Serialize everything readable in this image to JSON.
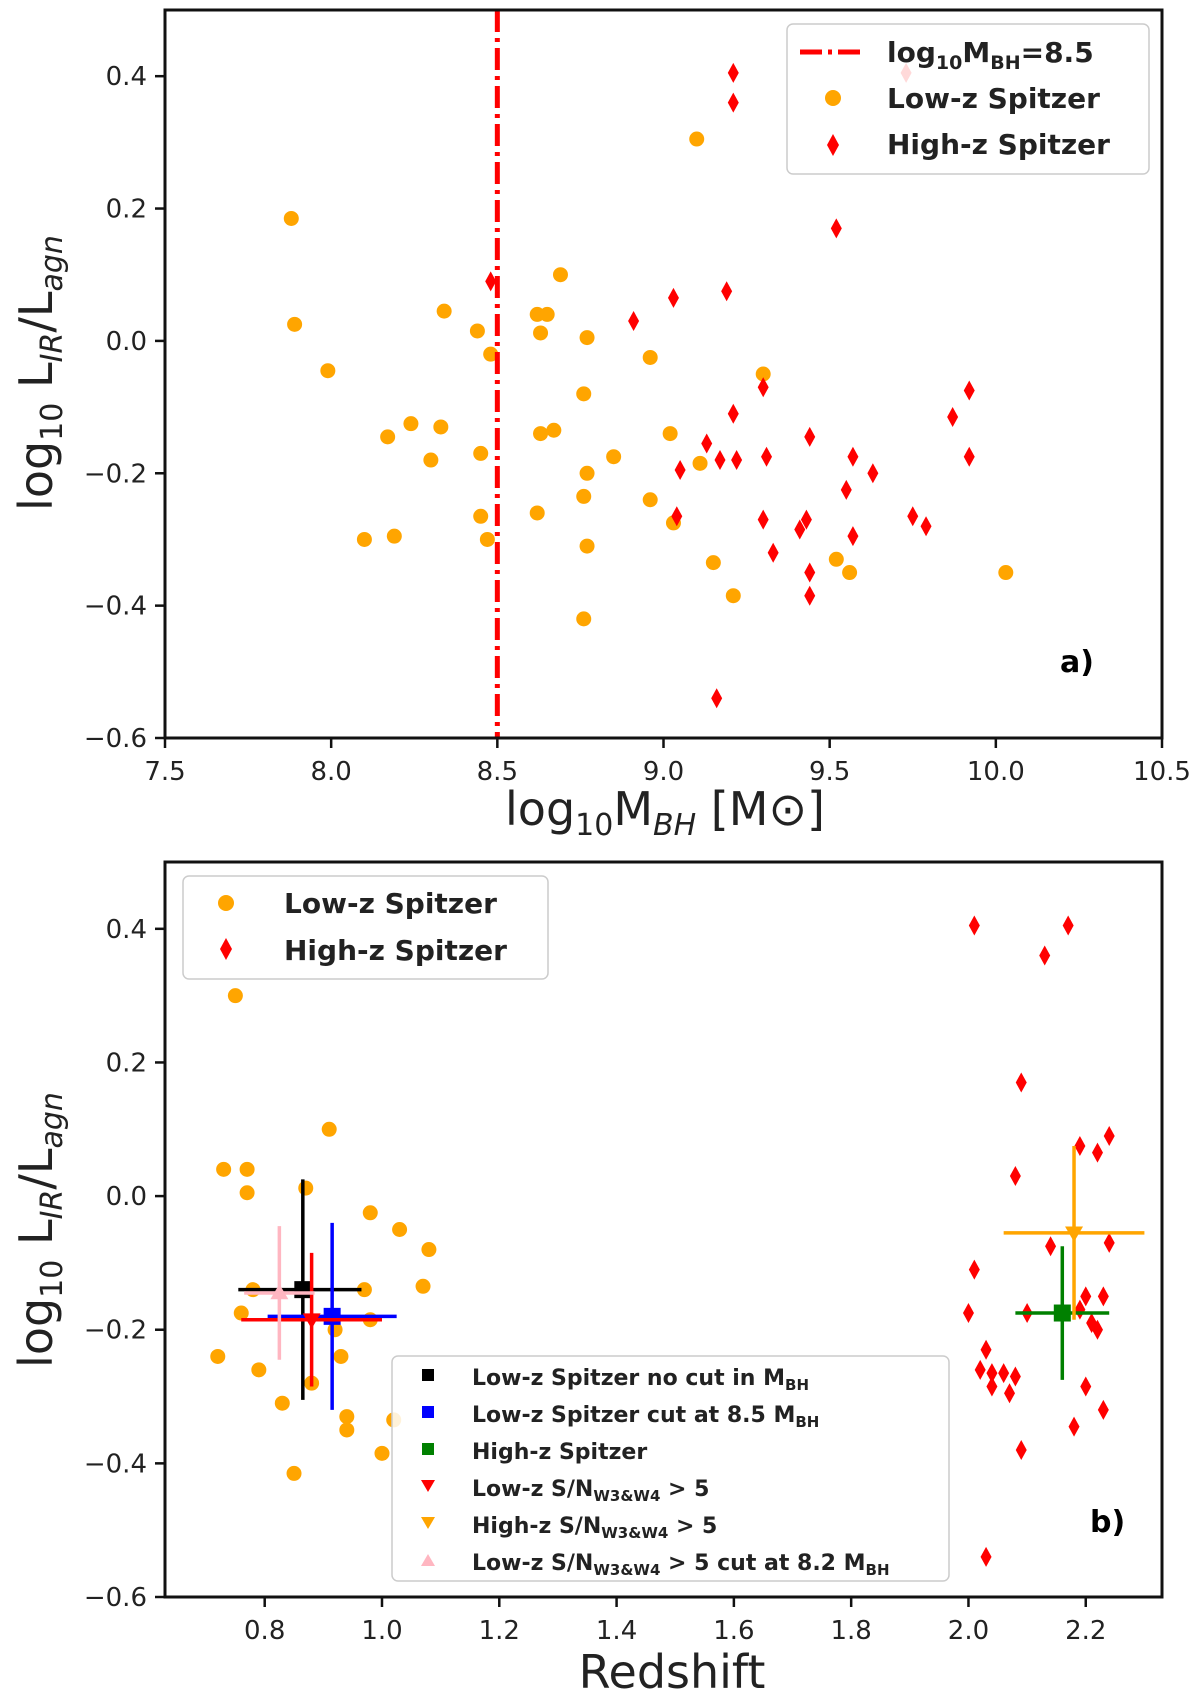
{
  "chart_data": [
    {
      "type": "scatter",
      "panel_label": "a)",
      "ylabel_main": "log",
      "ylabel_sub": "10",
      "ylabel_L1": "L",
      "ylabel_sub_ir": "IR",
      "ylabel_mid": "/L",
      "ylabel_sub_agn": "agn",
      "xlabel_main": "log",
      "xlabel_sub": "10",
      "xlabel_M": "M",
      "xlabel_sub_bh": "BH",
      "xlabel_unit": " [M",
      "xlabel_unit_sym": "⊙",
      "xlabel_unit_end": "]",
      "xlim": [
        7.5,
        10.5
      ],
      "ylim": [
        -0.6,
        0.5
      ],
      "xticks": [
        7.5,
        8.0,
        8.5,
        9.0,
        9.5,
        10.0,
        10.5
      ],
      "xtick_labels": [
        "7.5",
        "8.0",
        "8.5",
        "9.0",
        "9.5",
        "10.0",
        "10.5"
      ],
      "yticks": [
        -0.6,
        -0.4,
        -0.2,
        0.0,
        0.2,
        0.4
      ],
      "ytick_labels": [
        "−0.6",
        "−0.4",
        "−0.2",
        "0.0",
        "0.2",
        "0.4"
      ],
      "grid": false,
      "legend_position": "top-right",
      "vline": {
        "x": 8.5,
        "label_main": "log",
        "label_sub": "10",
        "label_M": "M",
        "label_sub_bh": "BH",
        "label_end": "=8.5",
        "color": "#ff0000",
        "style": "dashdot"
      },
      "series": [
        {
          "name": "Low-z Spitzer",
          "marker": "circle",
          "color": "#ffa500",
          "points": [
            [
              7.88,
              0.185
            ],
            [
              7.89,
              0.025
            ],
            [
              7.99,
              -0.045
            ],
            [
              8.1,
              -0.3
            ],
            [
              8.17,
              -0.145
            ],
            [
              8.19,
              -0.295
            ],
            [
              8.24,
              -0.125
            ],
            [
              8.3,
              -0.18
            ],
            [
              8.33,
              -0.13
            ],
            [
              8.34,
              0.045
            ],
            [
              8.44,
              0.015
            ],
            [
              8.45,
              -0.17
            ],
            [
              8.45,
              -0.265
            ],
            [
              8.47,
              -0.3
            ],
            [
              8.48,
              -0.02
            ],
            [
              8.62,
              0.04
            ],
            [
              8.62,
              -0.26
            ],
            [
              8.63,
              -0.14
            ],
            [
              8.63,
              0.012
            ],
            [
              8.65,
              0.04
            ],
            [
              8.67,
              -0.135
            ],
            [
              8.69,
              0.1
            ],
            [
              8.76,
              -0.08
            ],
            [
              8.76,
              -0.235
            ],
            [
              8.76,
              -0.42
            ],
            [
              8.77,
              0.005
            ],
            [
              8.77,
              -0.2
            ],
            [
              8.77,
              -0.31
            ],
            [
              8.85,
              -0.175
            ],
            [
              8.96,
              -0.025
            ],
            [
              8.96,
              -0.24
            ],
            [
              9.02,
              -0.14
            ],
            [
              9.03,
              -0.275
            ],
            [
              9.1,
              0.305
            ],
            [
              9.11,
              -0.185
            ],
            [
              9.15,
              -0.335
            ],
            [
              9.21,
              -0.385
            ],
            [
              9.3,
              -0.05
            ],
            [
              9.52,
              -0.33
            ],
            [
              9.56,
              -0.35
            ],
            [
              10.03,
              -0.35
            ]
          ]
        },
        {
          "name": "High-z Spitzer",
          "marker": "diamond",
          "color": "#ff0000",
          "points": [
            [
              8.48,
              0.09
            ],
            [
              8.91,
              0.03
            ],
            [
              9.03,
              0.065
            ],
            [
              9.04,
              -0.265
            ],
            [
              9.05,
              -0.195
            ],
            [
              9.13,
              -0.155
            ],
            [
              9.17,
              -0.18
            ],
            [
              9.19,
              0.075
            ],
            [
              9.21,
              0.405
            ],
            [
              9.21,
              0.36
            ],
            [
              9.21,
              -0.11
            ],
            [
              9.22,
              -0.18
            ],
            [
              9.16,
              -0.54
            ],
            [
              9.3,
              -0.07
            ],
            [
              9.3,
              -0.27
            ],
            [
              9.31,
              -0.175
            ],
            [
              9.33,
              -0.32
            ],
            [
              9.41,
              -0.285
            ],
            [
              9.43,
              -0.27
            ],
            [
              9.44,
              -0.145
            ],
            [
              9.44,
              -0.35
            ],
            [
              9.44,
              -0.385
            ],
            [
              9.52,
              0.17
            ],
            [
              9.55,
              -0.225
            ],
            [
              9.57,
              -0.175
            ],
            [
              9.57,
              -0.295
            ],
            [
              9.63,
              -0.2
            ],
            [
              9.75,
              -0.265
            ],
            [
              9.79,
              -0.28
            ],
            [
              9.87,
              -0.115
            ],
            [
              9.92,
              -0.075
            ],
            [
              9.92,
              -0.175
            ],
            [
              9.73,
              0.405
            ]
          ]
        }
      ],
      "legend": [
        {
          "kind": "vline",
          "main": "log",
          "sub": "10",
          "M": "M",
          "sub_bh": "BH",
          "end": "=8.5"
        },
        {
          "kind": "circle",
          "label": "Low-z Spitzer"
        },
        {
          "kind": "diamond",
          "label": "High-z Spitzer"
        }
      ]
    },
    {
      "type": "scatter",
      "panel_label": "b)",
      "ylabel_main": "log",
      "ylabel_sub": "10",
      "ylabel_L1": "L",
      "ylabel_sub_ir": "IR",
      "ylabel_mid": "/L",
      "ylabel_sub_agn": "agn",
      "xlabel": "Redshift",
      "xlim": [
        0.63,
        2.33
      ],
      "ylim": [
        -0.6,
        0.5
      ],
      "xticks": [
        0.8,
        1.0,
        1.2,
        1.4,
        1.6,
        1.8,
        2.0,
        2.2
      ],
      "xtick_labels": [
        "0.8",
        "1.0",
        "1.2",
        "1.4",
        "1.6",
        "1.8",
        "2.0",
        "2.2"
      ],
      "yticks": [
        -0.6,
        -0.4,
        -0.2,
        0.0,
        0.2,
        0.4
      ],
      "ytick_labels": [
        "−0.6",
        "−0.4",
        "−0.2",
        "0.0",
        "0.2",
        "0.4"
      ],
      "grid": false,
      "legend_position": "top-left",
      "series": [
        {
          "name": "Low-z Spitzer",
          "marker": "circle",
          "color": "#ffa500",
          "points": [
            [
              0.72,
              -0.24
            ],
            [
              0.73,
              0.04
            ],
            [
              0.75,
              0.3
            ],
            [
              0.76,
              -0.175
            ],
            [
              0.77,
              0.005
            ],
            [
              0.77,
              0.04
            ],
            [
              0.78,
              -0.14
            ],
            [
              0.79,
              -0.26
            ],
            [
              0.83,
              -0.31
            ],
            [
              0.85,
              -0.415
            ],
            [
              0.87,
              0.012
            ],
            [
              0.88,
              -0.28
            ],
            [
              0.91,
              0.1
            ],
            [
              0.92,
              -0.2
            ],
            [
              0.93,
              -0.24
            ],
            [
              0.94,
              -0.33
            ],
            [
              0.94,
              -0.35
            ],
            [
              0.97,
              -0.14
            ],
            [
              0.98,
              -0.185
            ],
            [
              0.98,
              -0.025
            ],
            [
              1.0,
              -0.385
            ],
            [
              1.02,
              -0.335
            ],
            [
              1.03,
              -0.05
            ],
            [
              1.07,
              -0.135
            ],
            [
              1.08,
              -0.08
            ]
          ]
        },
        {
          "name": "High-z Spitzer",
          "marker": "diamond",
          "color": "#ff0000",
          "points": [
            [
              2.0,
              -0.175
            ],
            [
              2.01,
              -0.11
            ],
            [
              2.01,
              0.405
            ],
            [
              2.02,
              -0.26
            ],
            [
              2.03,
              -0.54
            ],
            [
              2.03,
              -0.23
            ],
            [
              2.04,
              -0.265
            ],
            [
              2.04,
              -0.285
            ],
            [
              2.06,
              -0.265
            ],
            [
              2.07,
              -0.295
            ],
            [
              2.08,
              0.03
            ],
            [
              2.08,
              -0.27
            ],
            [
              2.09,
              -0.38
            ],
            [
              2.09,
              0.17
            ],
            [
              2.1,
              -0.175
            ],
            [
              2.13,
              0.36
            ],
            [
              2.14,
              -0.075
            ],
            [
              2.17,
              0.405
            ],
            [
              2.18,
              -0.345
            ],
            [
              2.19,
              0.075
            ],
            [
              2.2,
              -0.15
            ],
            [
              2.2,
              -0.285
            ],
            [
              2.21,
              -0.19
            ],
            [
              2.22,
              0.065
            ],
            [
              2.22,
              -0.2
            ],
            [
              2.23,
              -0.15
            ],
            [
              2.23,
              -0.32
            ],
            [
              2.24,
              0.09
            ],
            [
              2.24,
              -0.07
            ],
            [
              2.19,
              -0.17
            ]
          ]
        }
      ],
      "errorbars": [
        {
          "name": "Low-z Spitzer no cut in M",
          "sub": "BH",
          "color": "#000000",
          "marker": "square",
          "x": 0.865,
          "y": -0.14,
          "xerr": [
            0.11,
            0.1
          ],
          "yerr": [
            0.165,
            0.165
          ]
        },
        {
          "name": "Low-z Spitzer cut at 8.5 M",
          "sub": "BH",
          "color": "#0000ff",
          "marker": "square",
          "x": 0.915,
          "y": -0.18,
          "xerr": [
            0.11,
            0.11
          ],
          "yerr": [
            0.14,
            0.14
          ]
        },
        {
          "name": "High-z Spitzer",
          "sub": "",
          "color": "#008000",
          "marker": "square",
          "x": 2.16,
          "y": -0.175,
          "xerr": [
            0.08,
            0.08
          ],
          "yerr": [
            0.1,
            0.1
          ]
        },
        {
          "name": "Low-z S/N",
          "sub": "W3&W4",
          "suffix": " > 5",
          "color": "#ff0000",
          "marker": "triangle-down",
          "x": 0.88,
          "y": -0.185,
          "xerr": [
            0.12,
            0.12
          ],
          "yerr": [
            0.1,
            0.1
          ]
        },
        {
          "name": "High-z S/N",
          "sub": "W3&W4",
          "suffix": " > 5",
          "color": "#ffa500",
          "marker": "triangle-down",
          "x": 2.18,
          "y": -0.055,
          "xerr": [
            0.12,
            0.12
          ],
          "yerr": [
            0.13,
            0.13
          ]
        },
        {
          "name": "Low-z S/N",
          "sub": "W3&W4",
          "suffix": " > 5 cut at 8.2 M",
          "sub2": "BH",
          "color": "#ffb6c1",
          "marker": "triangle-up",
          "x": 0.825,
          "y": -0.145,
          "xerr": [
            0.06,
            0.06
          ],
          "yerr": [
            0.1,
            0.1
          ]
        }
      ],
      "legend_top": [
        {
          "kind": "circle",
          "label": "Low-z Spitzer"
        },
        {
          "kind": "diamond",
          "label": "High-z Spitzer"
        }
      ]
    }
  ]
}
